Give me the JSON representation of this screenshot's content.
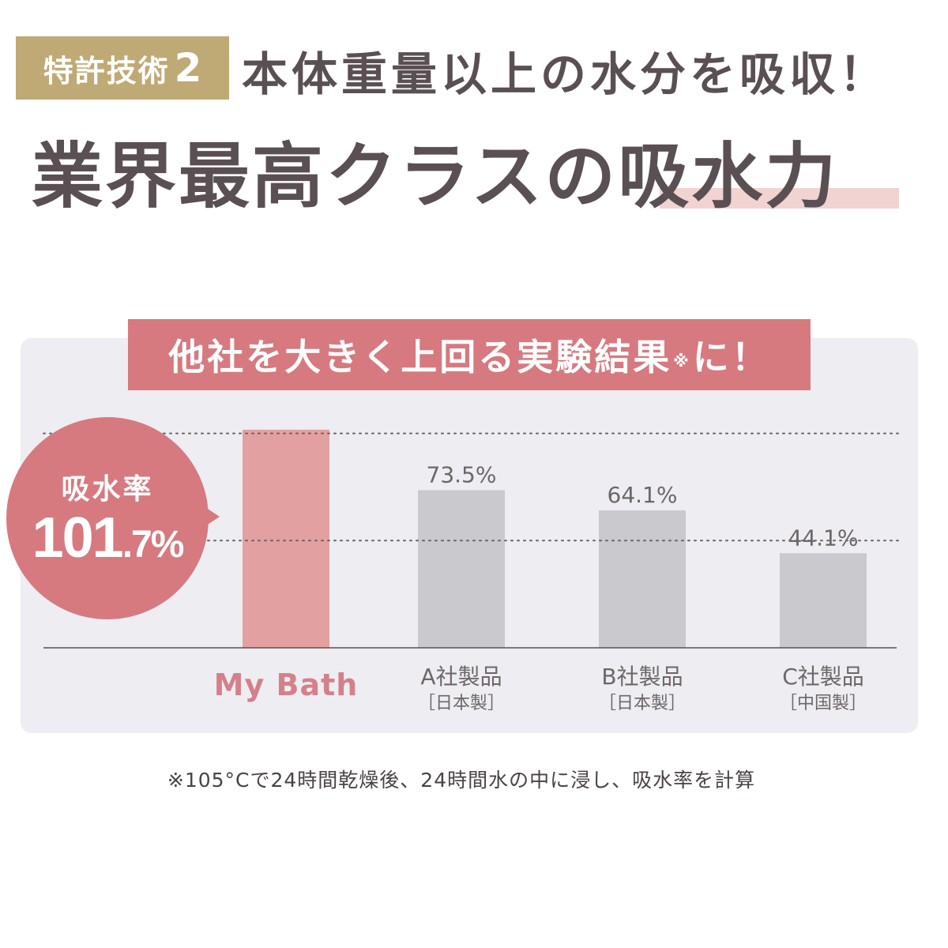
{
  "header": {
    "badge_text": "特許技術",
    "badge_number": "2",
    "subtitle": "本体重量以上の水分を吸収！",
    "headline_main": "業界最高クラスの",
    "headline_accent": "吸水力"
  },
  "banner": {
    "text": "他社を大きく上回る実験結果",
    "mark": "※",
    "suffix": "に！"
  },
  "callout": {
    "label": "吸水率",
    "value_int": "101",
    "value_dec": ".7%"
  },
  "footnote": "※105°Cで24時間乾燥後、24時間水の中に浸し、吸水率を計算",
  "colors": {
    "gold": "#bfa975",
    "pink": "#d67a80",
    "bar_highlight": "#e3a0a1",
    "bar_other": "#c9c9ce",
    "highlight_label": "#d4808a",
    "text": "#5a4f52",
    "panel": "#ededf2"
  },
  "chart_data": {
    "type": "bar",
    "categories": [
      "My Bath",
      "A社製品",
      "B社製品",
      "C社製品"
    ],
    "sublabels": [
      "",
      "［日本製］",
      "［日本製］",
      "［中国製］"
    ],
    "values": [
      101.7,
      73.5,
      64.1,
      44.1
    ],
    "value_labels": [
      "",
      "73.5%",
      "64.1%",
      "44.1%"
    ],
    "highlight_index": 0,
    "ylim": [
      0,
      105
    ],
    "reference_lines": [
      100,
      50
    ]
  }
}
